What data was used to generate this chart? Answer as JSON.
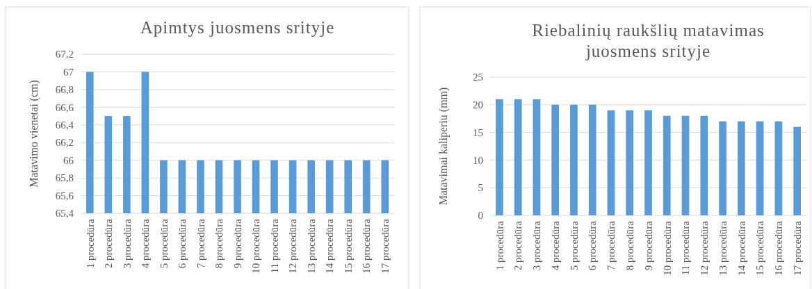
{
  "chart_data": [
    {
      "type": "bar",
      "title": "Apimtys juosmens srityje",
      "ylabel": "Matavimo vienetai (cm)",
      "categories": [
        "1 procedūra",
        "2 procedūra",
        "3 procedūra",
        "4 procedūra",
        "5 procedūra",
        "6 procedūra",
        "7 procedūra",
        "8 procedūra",
        "9 procedūra",
        "10 procedūra",
        "11 procedūra",
        "12 procedūra",
        "13 procedūra",
        "14 procedūra",
        "15 procedūra",
        "16 procedūra",
        "17 procedūra"
      ],
      "values": [
        67,
        66.5,
        66.5,
        67,
        66,
        66,
        66,
        66,
        66,
        66,
        66,
        66,
        66,
        66,
        66,
        66,
        66
      ],
      "color": "#5b9bd5",
      "ylim": [
        65.4,
        67.2
      ],
      "yticks": [
        {
          "value": 65.4,
          "label": "65,4"
        },
        {
          "value": 65.6,
          "label": "65,6"
        },
        {
          "value": 65.8,
          "label": "65,8"
        },
        66,
        {
          "value": 66.2,
          "label": "66,2"
        },
        {
          "value": 66.4,
          "label": "66,4"
        },
        {
          "value": 66.6,
          "label": "66,6"
        },
        {
          "value": 66.8,
          "label": "66,8"
        },
        67,
        {
          "value": 67.2,
          "label": "67,2"
        }
      ],
      "grid": "y"
    },
    {
      "type": "bar",
      "title": "Riebalinių raukšlių matavimas juosmens srityje",
      "ylabel": "Matavimai kaliperiu (mm)",
      "categories": [
        "1 procedūra",
        "2 procedūra",
        "3 procedūra",
        "4 procedūra",
        "5 procedūra",
        "6 procedūra",
        "7 procedūra",
        "8 procedūra",
        "9 procedūra",
        "10 procedūra",
        "11 procedūra",
        "12 procedūra",
        "13 procedūra",
        "14 procedūra",
        "15 procedūra",
        "16 procedūra",
        "17 procedūra"
      ],
      "values": [
        21,
        21,
        21,
        20,
        20,
        20,
        19,
        19,
        19,
        18,
        18,
        18,
        17,
        17,
        17,
        17,
        16
      ],
      "color": "#5b9bd5",
      "ylim": [
        0,
        25
      ],
      "yticks": [
        0,
        5,
        10,
        15,
        20,
        25
      ],
      "grid": "y"
    }
  ]
}
